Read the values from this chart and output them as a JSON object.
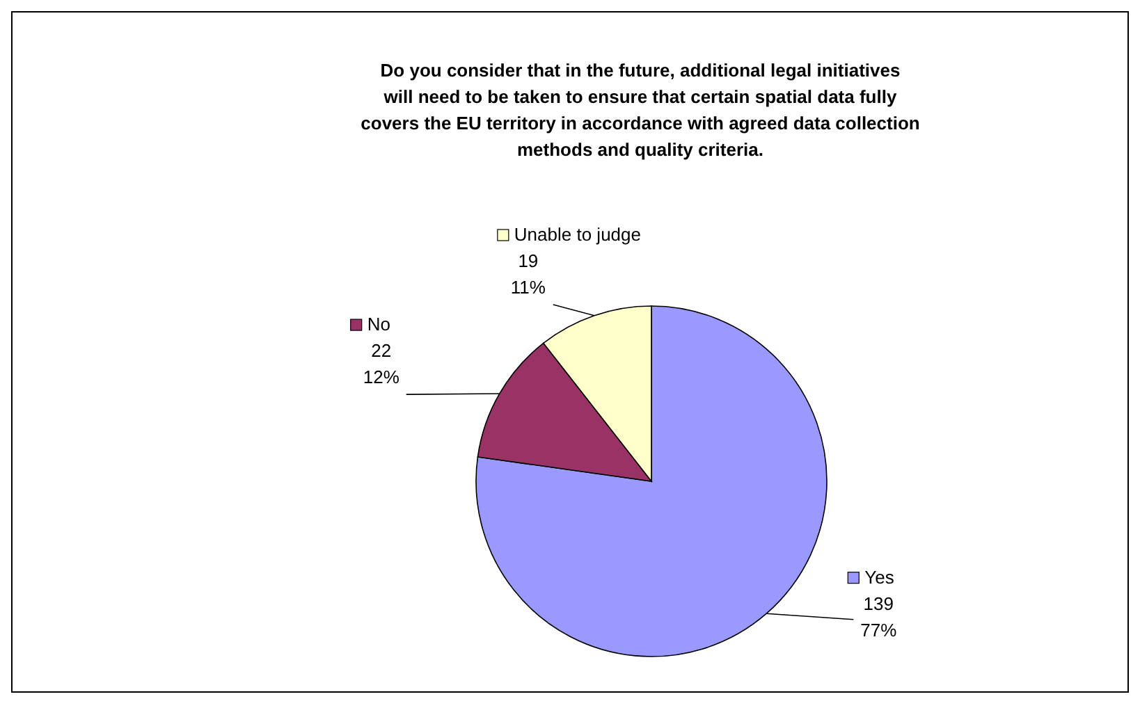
{
  "chart_data": {
    "type": "pie",
    "title": "Do you consider that in the future, additional legal initiatives will need to be taken to ensure that certain spatial data fully covers the EU territory in accordance with agreed data collection methods and quality criteria.",
    "categories": [
      "Yes",
      "No",
      "Unable to judge"
    ],
    "values": [
      139,
      22,
      19
    ],
    "colors": [
      "#9999ff",
      "#993366",
      "#ffffcc"
    ],
    "legend": "top left",
    "value_labels": [
      "139\n77%",
      "22\n12%",
      "19\n11%"
    ]
  }
}
